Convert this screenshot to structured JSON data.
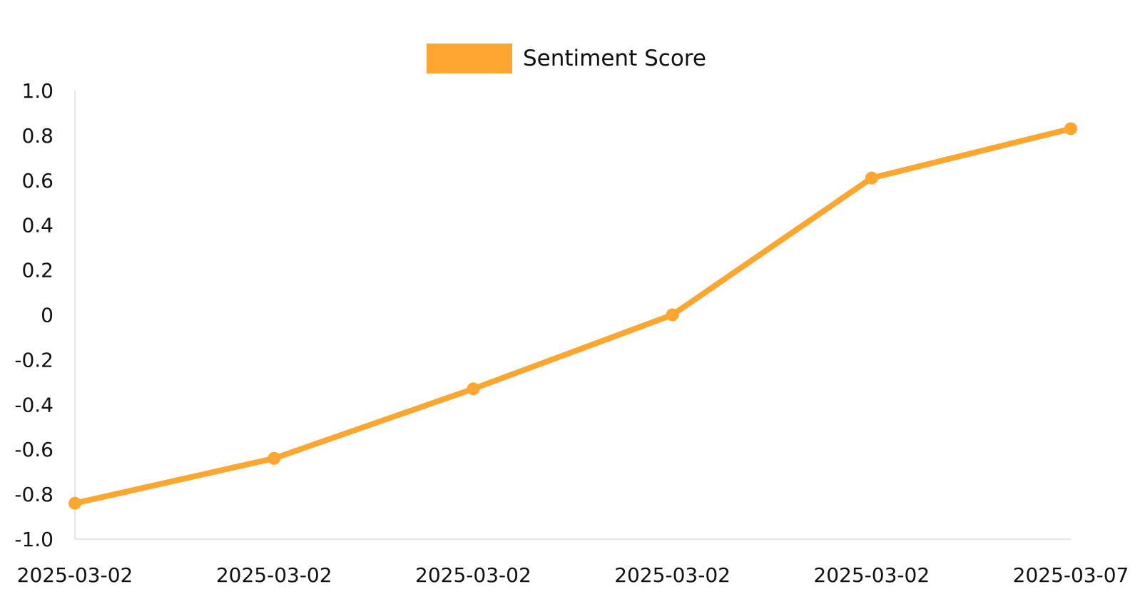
{
  "chart_data": {
    "type": "line",
    "title": "",
    "xlabel": "",
    "ylabel": "",
    "categories": [
      "2025-03-02",
      "2025-03-02",
      "2025-03-02",
      "2025-03-02",
      "2025-03-02",
      "2025-03-07"
    ],
    "series": [
      {
        "name": "Sentiment Score",
        "color": "#FFA630",
        "values": [
          -0.84,
          -0.64,
          -0.33,
          0.0,
          0.61,
          0.83
        ]
      }
    ],
    "ylim": [
      -1.0,
      1.0
    ],
    "yticks": [
      "1.0",
      "0.8",
      "0.6",
      "0.4",
      "0.2",
      "0",
      "-0.2",
      "-0.4",
      "-0.6",
      "-0.8",
      "-1.0"
    ],
    "ytick_values": [
      1.0,
      0.8,
      0.6,
      0.4,
      0.2,
      0,
      -0.2,
      -0.4,
      -0.6,
      -0.8,
      -1.0
    ],
    "grid": false,
    "legend_position": "top-center",
    "axis_color": "#E5E5E5"
  }
}
